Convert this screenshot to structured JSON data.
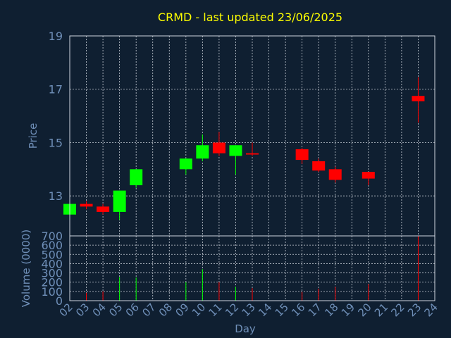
{
  "chart_data": [
    {
      "type": "candlestick",
      "title": "CRMD - last updated 23/06/2025",
      "xlabel": "",
      "ylabel": "Price",
      "ylim": [
        11.5,
        19
      ],
      "yticks": [
        13,
        15,
        17,
        19
      ],
      "grid": true,
      "colors": {
        "up": "#00ff00",
        "down": "#ff0000"
      },
      "candles": [
        {
          "x": "02",
          "open": 12.3,
          "high": 12.8,
          "low": 12.2,
          "close": 12.7
        },
        {
          "x": "03",
          "open": 12.7,
          "high": 12.8,
          "low": 12.5,
          "close": 12.6
        },
        {
          "x": "04",
          "open": 12.6,
          "high": 12.7,
          "low": 12.3,
          "close": 12.4
        },
        {
          "x": "05",
          "open": 12.4,
          "high": 13.2,
          "low": 12.1,
          "close": 13.2
        },
        {
          "x": "06",
          "open": 13.4,
          "high": 14.0,
          "low": 13.3,
          "close": 14.0
        },
        {
          "x": "09",
          "open": 14.0,
          "high": 14.4,
          "low": 13.8,
          "close": 14.4
        },
        {
          "x": "10",
          "open": 14.4,
          "high": 15.3,
          "low": 14.3,
          "close": 14.9
        },
        {
          "x": "11",
          "open": 15.0,
          "high": 15.4,
          "low": 14.5,
          "close": 14.6
        },
        {
          "x": "12",
          "open": 14.5,
          "high": 14.9,
          "low": 13.8,
          "close": 14.9
        },
        {
          "x": "13",
          "open": 14.6,
          "high": 15.0,
          "low": 14.5,
          "close": 14.55
        },
        {
          "x": "16",
          "open": 14.75,
          "high": 14.8,
          "low": 14.2,
          "close": 14.35
        },
        {
          "x": "17",
          "open": 14.3,
          "high": 14.4,
          "low": 13.9,
          "close": 13.95
        },
        {
          "x": "18",
          "open": 14.0,
          "high": 14.1,
          "low": 13.5,
          "close": 13.6
        },
        {
          "x": "20",
          "open": 13.9,
          "high": 13.9,
          "low": 13.4,
          "close": 13.65
        },
        {
          "x": "23",
          "open": 16.75,
          "high": 17.45,
          "low": 15.75,
          "close": 16.55
        }
      ]
    },
    {
      "type": "bar",
      "title": "",
      "xlabel": "Day",
      "ylabel": "Volume (0000)",
      "ylim": [
        0,
        700
      ],
      "yticks": [
        0,
        100,
        200,
        300,
        400,
        500,
        600,
        700
      ],
      "grid": true,
      "categories": [
        "02",
        "03",
        "04",
        "05",
        "06",
        "07",
        "08",
        "09",
        "10",
        "11",
        "12",
        "13",
        "14",
        "15",
        "16",
        "17",
        "18",
        "19",
        "20",
        "21",
        "22",
        "23",
        "24"
      ],
      "bars": [
        {
          "x": "02",
          "value": 40,
          "color": "#00ff00"
        },
        {
          "x": "03",
          "value": 85,
          "color": "#ff0000"
        },
        {
          "x": "04",
          "value": 100,
          "color": "#ff0000"
        },
        {
          "x": "05",
          "value": 255,
          "color": "#00ff00"
        },
        {
          "x": "06",
          "value": 250,
          "color": "#00ff00"
        },
        {
          "x": "09",
          "value": 200,
          "color": "#00ff00"
        },
        {
          "x": "10",
          "value": 340,
          "color": "#00ff00"
        },
        {
          "x": "11",
          "value": 200,
          "color": "#ff0000"
        },
        {
          "x": "12",
          "value": 150,
          "color": "#00ff00"
        },
        {
          "x": "13",
          "value": 135,
          "color": "#ff0000"
        },
        {
          "x": "16",
          "value": 95,
          "color": "#ff0000"
        },
        {
          "x": "17",
          "value": 130,
          "color": "#ff0000"
        },
        {
          "x": "18",
          "value": 150,
          "color": "#ff0000"
        },
        {
          "x": "20",
          "value": 180,
          "color": "#ff0000"
        },
        {
          "x": "23",
          "value": 700,
          "color": "#ff0000"
        }
      ]
    }
  ]
}
